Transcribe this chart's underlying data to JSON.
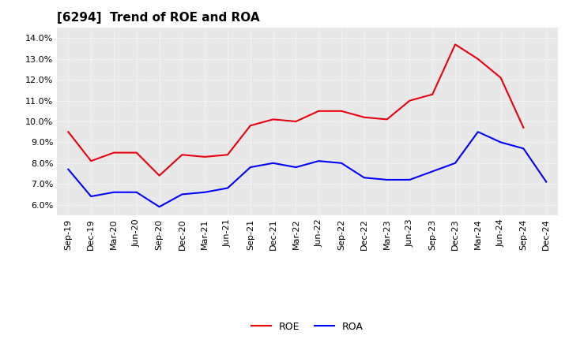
{
  "title": "[6294]  Trend of ROE and ROA",
  "x_labels": [
    "Sep-19",
    "Dec-19",
    "Mar-20",
    "Jun-20",
    "Sep-20",
    "Dec-20",
    "Mar-21",
    "Jun-21",
    "Sep-21",
    "Dec-21",
    "Mar-22",
    "Jun-22",
    "Sep-22",
    "Dec-22",
    "Mar-23",
    "Jun-23",
    "Sep-23",
    "Dec-23",
    "Mar-24",
    "Jun-24",
    "Sep-24",
    "Dec-24"
  ],
  "roe": [
    9.5,
    8.1,
    8.5,
    8.5,
    7.4,
    8.4,
    8.3,
    8.4,
    9.8,
    10.1,
    10.0,
    10.5,
    10.5,
    10.2,
    10.1,
    11.0,
    11.3,
    13.7,
    13.0,
    12.1,
    9.7,
    null
  ],
  "roa": [
    7.7,
    6.4,
    6.6,
    6.6,
    5.9,
    6.5,
    6.6,
    6.8,
    7.8,
    8.0,
    7.8,
    8.1,
    8.0,
    7.3,
    7.2,
    7.2,
    7.6,
    8.0,
    9.5,
    9.0,
    8.7,
    7.1
  ],
  "roe_color": "#e8000d",
  "roa_color": "#0000ff",
  "ylim": [
    5.5,
    14.5
  ],
  "yticks": [
    6.0,
    7.0,
    8.0,
    9.0,
    10.0,
    11.0,
    12.0,
    13.0,
    14.0
  ],
  "background_color": "#ffffff",
  "plot_bg_color": "#e8e8e8",
  "grid_color": "#ffffff",
  "title_fontsize": 11,
  "legend_fontsize": 9,
  "tick_fontsize": 8
}
